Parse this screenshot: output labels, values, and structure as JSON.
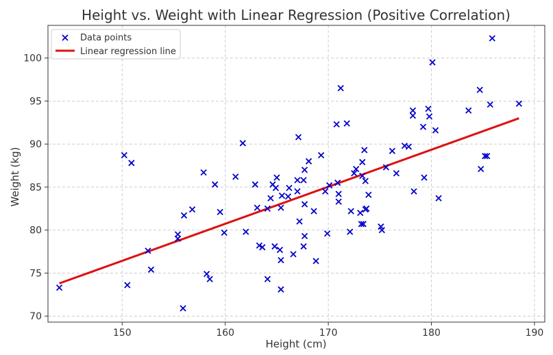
{
  "chart_data": {
    "type": "scatter",
    "title": "Height vs. Weight with Linear Regression (Positive Correlation)",
    "xlabel": "Height (cm)",
    "ylabel": "Weight (kg)",
    "xlim": [
      142.8,
      191.0
    ],
    "ylim": [
      69.3,
      103.8
    ],
    "xticks": [
      150,
      160,
      170,
      180,
      190
    ],
    "yticks": [
      70,
      75,
      80,
      85,
      90,
      95,
      100
    ],
    "grid": true,
    "legend_position": "top-left",
    "series": [
      {
        "name": "Data points",
        "kind": "scatter",
        "marker": "x",
        "color": "#0000cc",
        "points": [
          [
            143.9,
            73.3
          ],
          [
            150.2,
            88.7
          ],
          [
            150.9,
            87.8
          ],
          [
            150.5,
            73.6
          ],
          [
            152.5,
            77.6
          ],
          [
            152.8,
            75.4
          ],
          [
            155.4,
            79.5
          ],
          [
            155.4,
            79.0
          ],
          [
            155.9,
            70.9
          ],
          [
            156.0,
            81.7
          ],
          [
            156.8,
            82.4
          ],
          [
            157.9,
            86.7
          ],
          [
            158.2,
            74.9
          ],
          [
            158.5,
            74.3
          ],
          [
            159.0,
            85.3
          ],
          [
            159.5,
            82.1
          ],
          [
            159.9,
            79.7
          ],
          [
            161.0,
            86.2
          ],
          [
            161.7,
            90.1
          ],
          [
            162.0,
            79.8
          ],
          [
            162.9,
            85.3
          ],
          [
            163.1,
            82.6
          ],
          [
            163.3,
            78.2
          ],
          [
            163.6,
            78.0
          ],
          [
            164.1,
            82.5
          ],
          [
            164.1,
            74.3
          ],
          [
            164.4,
            83.7
          ],
          [
            164.6,
            85.3
          ],
          [
            164.8,
            78.1
          ],
          [
            164.9,
            84.9
          ],
          [
            165.0,
            86.1
          ],
          [
            165.3,
            77.7
          ],
          [
            165.4,
            82.6
          ],
          [
            165.5,
            84.0
          ],
          [
            165.4,
            76.5
          ],
          [
            165.4,
            73.1
          ],
          [
            166.1,
            83.9
          ],
          [
            166.2,
            84.9
          ],
          [
            166.6,
            77.2
          ],
          [
            167.0,
            85.8
          ],
          [
            167.0,
            84.5
          ],
          [
            167.1,
            90.8
          ],
          [
            167.2,
            81.0
          ],
          [
            167.6,
            85.8
          ],
          [
            167.7,
            83.0
          ],
          [
            167.7,
            87.0
          ],
          [
            167.7,
            79.3
          ],
          [
            167.6,
            78.1
          ],
          [
            168.1,
            88.0
          ],
          [
            168.6,
            82.2
          ],
          [
            168.8,
            76.4
          ],
          [
            169.3,
            88.7
          ],
          [
            169.7,
            84.5
          ],
          [
            169.9,
            79.6
          ],
          [
            170.1,
            85.2
          ],
          [
            170.8,
            92.3
          ],
          [
            170.9,
            85.5
          ],
          [
            171.0,
            84.2
          ],
          [
            171.0,
            83.3
          ],
          [
            171.2,
            96.5
          ],
          [
            171.8,
            92.4
          ],
          [
            172.1,
            79.8
          ],
          [
            172.2,
            82.2
          ],
          [
            172.5,
            86.6
          ],
          [
            172.7,
            87.1
          ],
          [
            173.1,
            82.0
          ],
          [
            173.2,
            80.7
          ],
          [
            173.3,
            87.9
          ],
          [
            173.4,
            80.7
          ],
          [
            173.3,
            86.3
          ],
          [
            173.5,
            89.3
          ],
          [
            173.6,
            82.4
          ],
          [
            173.6,
            85.7
          ],
          [
            173.7,
            82.5
          ],
          [
            173.9,
            84.1
          ],
          [
            175.1,
            80.4
          ],
          [
            175.2,
            80.0
          ],
          [
            175.6,
            87.3
          ],
          [
            176.2,
            89.2
          ],
          [
            176.6,
            86.6
          ],
          [
            177.4,
            89.8
          ],
          [
            177.8,
            89.7
          ],
          [
            178.2,
            93.9
          ],
          [
            178.2,
            93.3
          ],
          [
            178.3,
            84.5
          ],
          [
            179.2,
            92.0
          ],
          [
            179.3,
            86.1
          ],
          [
            179.7,
            94.1
          ],
          [
            179.8,
            93.2
          ],
          [
            180.1,
            99.5
          ],
          [
            180.4,
            91.6
          ],
          [
            180.7,
            83.7
          ],
          [
            183.6,
            93.9
          ],
          [
            184.7,
            96.3
          ],
          [
            184.8,
            87.1
          ],
          [
            185.2,
            88.6
          ],
          [
            185.4,
            88.6
          ],
          [
            185.7,
            94.6
          ],
          [
            185.9,
            102.3
          ],
          [
            188.5,
            94.7
          ]
        ]
      },
      {
        "name": "Linear regression line",
        "kind": "line",
        "color": "#dd1111",
        "points": [
          [
            143.9,
            73.8
          ],
          [
            188.5,
            93.0
          ]
        ]
      }
    ]
  }
}
